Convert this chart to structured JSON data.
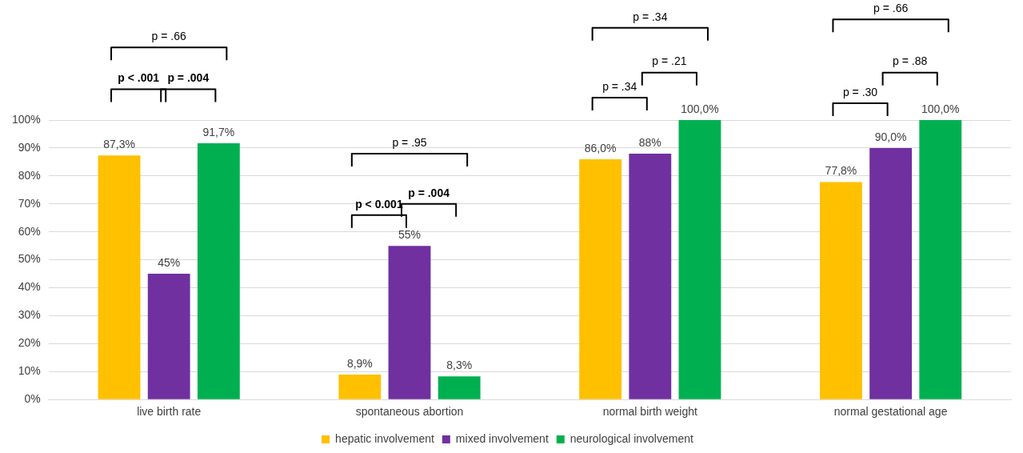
{
  "chart_data": {
    "type": "bar",
    "categories": [
      "live birth rate",
      "spontaneous abortion",
      "normal birth weight",
      "normal gestational age"
    ],
    "series": [
      {
        "name": "hepatic involvement",
        "color": "#ffc000",
        "values": [
          87.3,
          8.9,
          86.0,
          77.8
        ],
        "value_labels": [
          "87,3%",
          "8,9%",
          "86,0%",
          "77,8%"
        ]
      },
      {
        "name": "mixed involvement",
        "color": "#7030a0",
        "values": [
          45,
          55,
          88,
          90.0
        ],
        "value_labels": [
          "45%",
          "55%",
          "88%",
          "90,0%"
        ]
      },
      {
        "name": "neurological involvement",
        "color": "#00b050",
        "values": [
          91.7,
          8.3,
          100.0,
          100.0
        ],
        "value_labels": [
          "91,7%",
          "8,3%",
          "100,0%",
          "100,0%"
        ]
      }
    ],
    "ylim": [
      0,
      100
    ],
    "yticks": [
      {
        "value": 0,
        "label": "0%"
      },
      {
        "value": 10,
        "label": "10%"
      },
      {
        "value": 20,
        "label": "20%"
      },
      {
        "value": 30,
        "label": "30%"
      },
      {
        "value": 40,
        "label": "40%"
      },
      {
        "value": 50,
        "label": "50%"
      },
      {
        "value": 60,
        "label": "60%"
      },
      {
        "value": 70,
        "label": "70%"
      },
      {
        "value": 80,
        "label": "80%"
      },
      {
        "value": 90,
        "label": "90%"
      },
      {
        "value": 100,
        "label": "100%"
      }
    ],
    "grid": "y",
    "legend": "bottom",
    "annotations": [
      "p = .66",
      "p < .001",
      "p = .004",
      "p = .95",
      "p < 0.001",
      "p = .004",
      "p = .34",
      "p = .34",
      "p = .21",
      "p = .66",
      "p = .30",
      "p = .88"
    ]
  }
}
